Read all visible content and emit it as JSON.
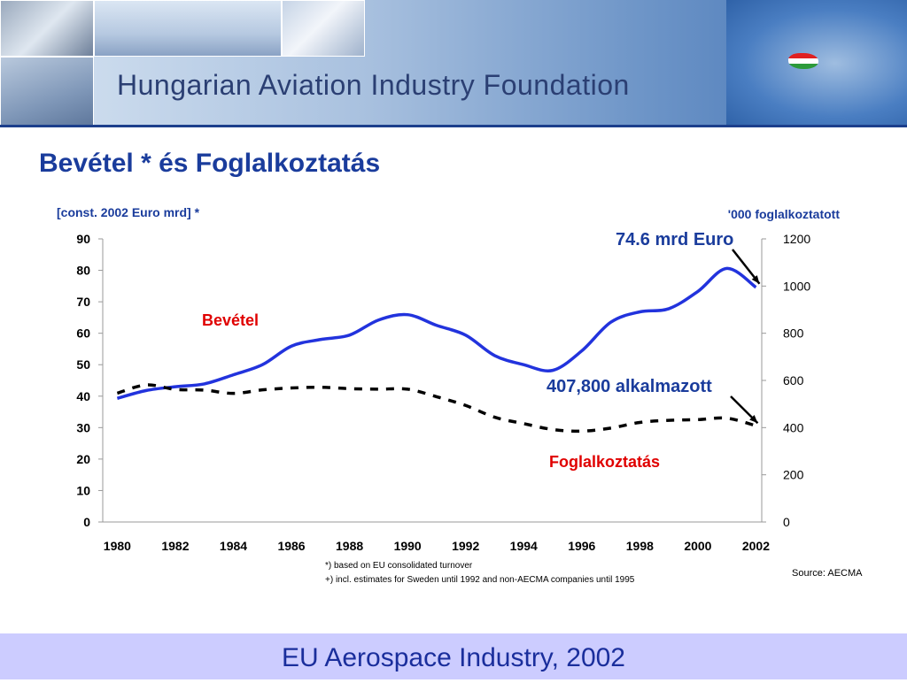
{
  "banner": {
    "title": "Hungarian Aviation Industry Foundation"
  },
  "heading": "Bevétel * és Foglalkoztatás",
  "chart_data": {
    "type": "line",
    "title": "Bevétel * és Foglalkoztatás",
    "left_axis_label": "[const. 2002 Euro mrd] *",
    "right_axis_label": "'000 foglalkoztatott",
    "left_ylim": [
      0,
      90
    ],
    "left_ticks": [
      "0",
      "10",
      "20",
      "30",
      "40",
      "50",
      "60",
      "70",
      "80",
      "90"
    ],
    "right_ylim": [
      0,
      1200
    ],
    "right_ticks": [
      "0",
      "200",
      "400",
      "600",
      "800",
      "1000",
      "1200"
    ],
    "xlim": [
      1979.5,
      2002.2
    ],
    "x_ticks": [
      "1980",
      "1982",
      "1984",
      "1986",
      "1988",
      "1990",
      "1992",
      "1994",
      "1996",
      "1998",
      "2000",
      "2002"
    ],
    "grid": false,
    "series": [
      {
        "name": "Bevétel",
        "axis": "left",
        "style": "solid",
        "color": "#2233dd",
        "x": [
          1980,
          1981,
          1982,
          1983,
          1984,
          1985,
          1986,
          1987,
          1988,
          1989,
          1990,
          1991,
          1992,
          1993,
          1994,
          1995,
          1996,
          1997,
          1998,
          1999,
          2000,
          2001,
          2002
        ],
        "values": [
          39.3,
          41.8,
          43.0,
          43.9,
          46.8,
          50.0,
          55.9,
          58.0,
          59.4,
          64.2,
          65.9,
          62.5,
          59.4,
          52.9,
          50.0,
          48.2,
          54.4,
          63.5,
          66.8,
          67.8,
          73.3,
          80.6,
          74.6
        ]
      },
      {
        "name": "Foglalkoztatás",
        "axis": "right",
        "style": "dashed",
        "color": "#000000",
        "x": [
          1980,
          1981,
          1982,
          1983,
          1984,
          1985,
          1986,
          1987,
          1988,
          1989,
          1990,
          1991,
          1992,
          1993,
          1994,
          1995,
          1996,
          1997,
          1998,
          1999,
          2000,
          2001,
          2002
        ],
        "values": [
          546,
          581,
          562,
          559,
          545,
          560,
          568,
          571,
          565,
          563,
          563,
          531,
          494,
          444,
          417,
          392,
          385,
          398,
          422,
          431,
          434,
          440,
          408
        ]
      }
    ],
    "annotations": [
      {
        "text": "Bevétel",
        "color": "#e00000"
      },
      {
        "text": "Foglalkoztatás",
        "color": "#e00000"
      },
      {
        "text": "74.6 mrd Euro",
        "color": "#1a3c9c"
      },
      {
        "text": "407,800 alkalmazott",
        "color": "#1a3c9c"
      }
    ]
  },
  "footnotes": [
    "*) based on EU consolidated turnover",
    "+) incl. estimates for Sweden until 1992 and non-AECMA companies until  1995"
  ],
  "source": "Source: AECMA",
  "footer": "EU Aerospace Industry, 2002"
}
